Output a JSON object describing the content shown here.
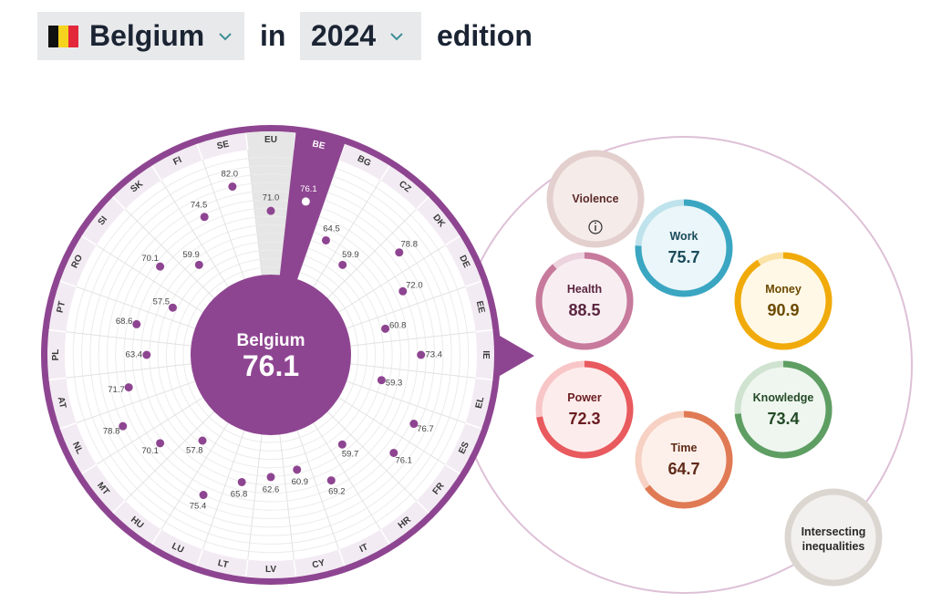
{
  "header": {
    "country_label": "Belgium",
    "flag_colors": [
      "#111111",
      "#f5d31f",
      "#e3283b"
    ],
    "connector": "in",
    "year_label": "2024",
    "suffix": "edition",
    "chevron_color": "#3e8f97"
  },
  "chart_data": [
    {
      "type": "polar-dot",
      "selected": "BE",
      "center_name": "Belgium",
      "center_value": "76.1",
      "countries": [
        {
          "code": "EU",
          "value": 71.0
        },
        {
          "code": "BE",
          "value": 76.1
        },
        {
          "code": "BG",
          "value": 64.5
        },
        {
          "code": "CZ",
          "value": 59.9
        },
        {
          "code": "DK",
          "value": 78.8
        },
        {
          "code": "DE",
          "value": 72.0
        },
        {
          "code": "EE",
          "value": 60.8
        },
        {
          "code": "IE",
          "value": 73.4
        },
        {
          "code": "EL",
          "value": 59.3
        },
        {
          "code": "ES",
          "value": 76.7
        },
        {
          "code": "FR",
          "value": 76.1
        },
        {
          "code": "HR",
          "value": 59.7
        },
        {
          "code": "IT",
          "value": 69.2
        },
        {
          "code": "CY",
          "value": 60.9
        },
        {
          "code": "LV",
          "value": 62.6
        },
        {
          "code": "LT",
          "value": 65.8
        },
        {
          "code": "LU",
          "value": 75.4
        },
        {
          "code": "HU",
          "value": 57.8
        },
        {
          "code": "MT",
          "value": 70.1
        },
        {
          "code": "NL",
          "value": 78.8
        },
        {
          "code": "AT",
          "value": 71.7
        },
        {
          "code": "PL",
          "value": 63.4
        },
        {
          "code": "PT",
          "value": 68.6
        },
        {
          "code": "RO",
          "value": 57.5
        },
        {
          "code": "SI",
          "value": 70.1
        },
        {
          "code": "SK",
          "value": 59.9
        },
        {
          "code": "FI",
          "value": 74.5
        },
        {
          "code": "SE",
          "value": 82.0
        }
      ]
    },
    {
      "type": "domain-rings",
      "domains": [
        {
          "name": "Violence",
          "value": null,
          "color": "#c8a7a4",
          "track": "#e3cfcd",
          "fill": "#f5ecea",
          "text": "#5a2a28"
        },
        {
          "name": "Work",
          "value": 75.7,
          "color": "#3aa6c2",
          "track": "#bfe3ec",
          "fill": "#eaf6f9",
          "text": "#1b4a5a"
        },
        {
          "name": "Money",
          "value": 90.9,
          "color": "#f0aa0a",
          "track": "#fbe3a8",
          "fill": "#fff8e6",
          "text": "#6b4a00"
        },
        {
          "name": "Knowledge",
          "value": 73.4,
          "color": "#5e9e63",
          "track": "#cfe3d0",
          "fill": "#eef6ef",
          "text": "#244a27"
        },
        {
          "name": "Time",
          "value": 64.7,
          "color": "#e07a55",
          "track": "#f7d1c3",
          "fill": "#fdf0ea",
          "text": "#5e2a17"
        },
        {
          "name": "Power",
          "value": 72.3,
          "color": "#e85a5e",
          "track": "#f8c6c7",
          "fill": "#fdecec",
          "text": "#6a1d20"
        },
        {
          "name": "Health",
          "value": 88.5,
          "color": "#c77a9c",
          "track": "#ecd3de",
          "fill": "#f8eef2",
          "text": "#5b2540"
        }
      ],
      "extra": {
        "name": "Intersecting inequalities",
        "lines": [
          "Intersecting",
          "inequalities"
        ]
      }
    }
  ],
  "colors": {
    "accent": "#8e4591",
    "accent_light": "#f3ebf3",
    "eu_sector": "#e6e6e6",
    "outer_circle": "#dec0d7"
  }
}
